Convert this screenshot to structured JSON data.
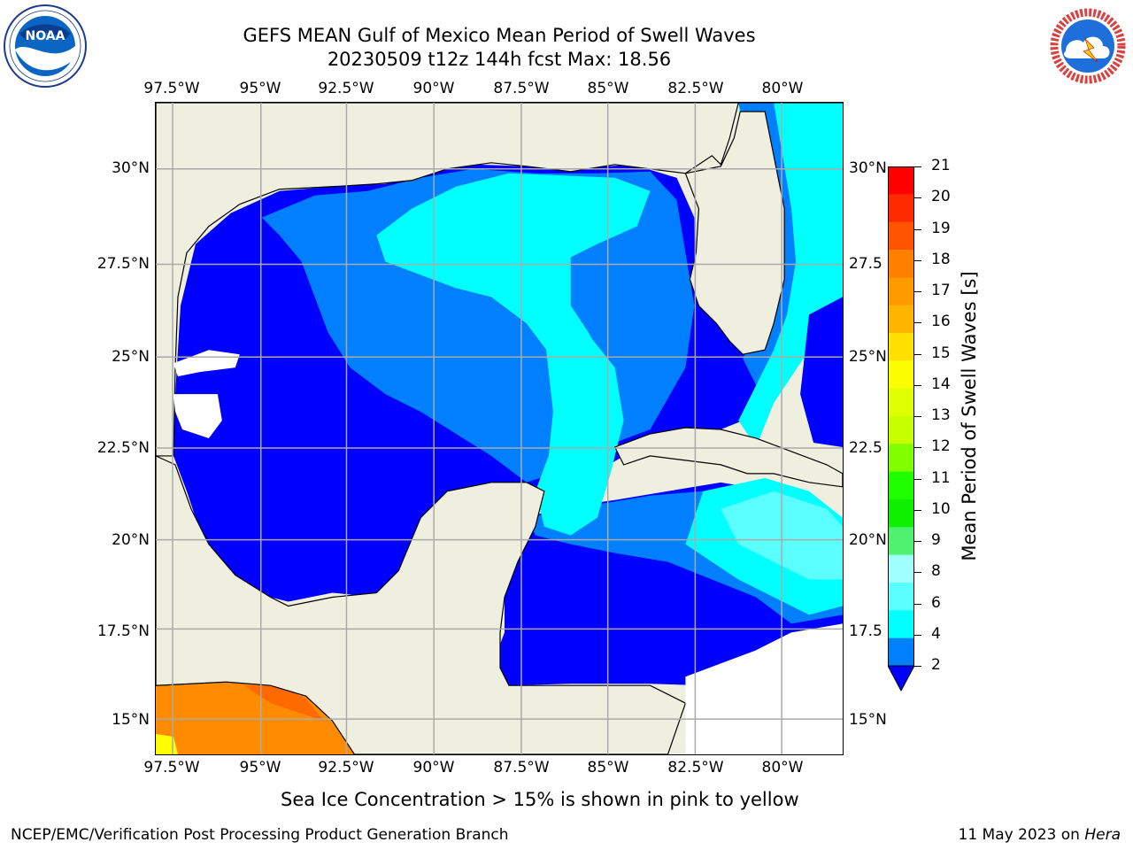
{
  "title": {
    "line1": "GEFS MEAN Gulf of Mexico Mean Period of Swell Waves",
    "line2": "20230509 t12z 144h fcst   Max: 18.56"
  },
  "axes": {
    "longitude_labels": [
      "97.5°W",
      "95°W",
      "92.5°W",
      "90°W",
      "87.5°W",
      "85°W",
      "82.5°W",
      "80°W"
    ],
    "latitude_labels_left": [
      "30°N",
      "27.5°N",
      "25°N",
      "22.5°N",
      "20°N",
      "17.5°N",
      "15°N"
    ],
    "latitude_labels_right": [
      "30°N",
      "27.5",
      "25°N",
      "22.5",
      "20°N",
      "17.5",
      "15°N"
    ]
  },
  "colorbar": {
    "label": "Mean Period of Swell Waves [s]",
    "ticks": [
      "21",
      "20",
      "19",
      "18",
      "17",
      "16",
      "15",
      "14",
      "13",
      "12",
      "11",
      "10",
      "9",
      "8",
      "6",
      "4",
      "2"
    ],
    "colors": [
      "#ff0000",
      "#ff2a00",
      "#ff5500",
      "#ff8000",
      "#ff9a00",
      "#ffb400",
      "#ffe000",
      "#fbff00",
      "#e0ff00",
      "#c8ff00",
      "#7fff00",
      "#1fff00",
      "#0ef000",
      "#50f070",
      "#a0ffff",
      "#5cffff",
      "#00ffff",
      "#0080ff"
    ]
  },
  "notes": {
    "sea_ice": "Sea Ice Concentration > 15% is shown in pink to yellow",
    "footer_left": "NCEP/EMC/Verification Post Processing Product Generation Branch",
    "footer_date": "11 May 2023 on ",
    "footer_host": "Hera"
  },
  "logos": {
    "left": "NOAA",
    "right_text": "NATIONAL WEATHER SERVICE"
  },
  "map_colors": {
    "land": "#efefdf",
    "deep_blue": "#0000ff",
    "mid_blue": "#0080ff",
    "cyan": "#00ffff",
    "light_cyan": "#5cffff",
    "orange": "#ff8c00",
    "dark_orange": "#ff6a00",
    "yellow": "#ffff00"
  }
}
